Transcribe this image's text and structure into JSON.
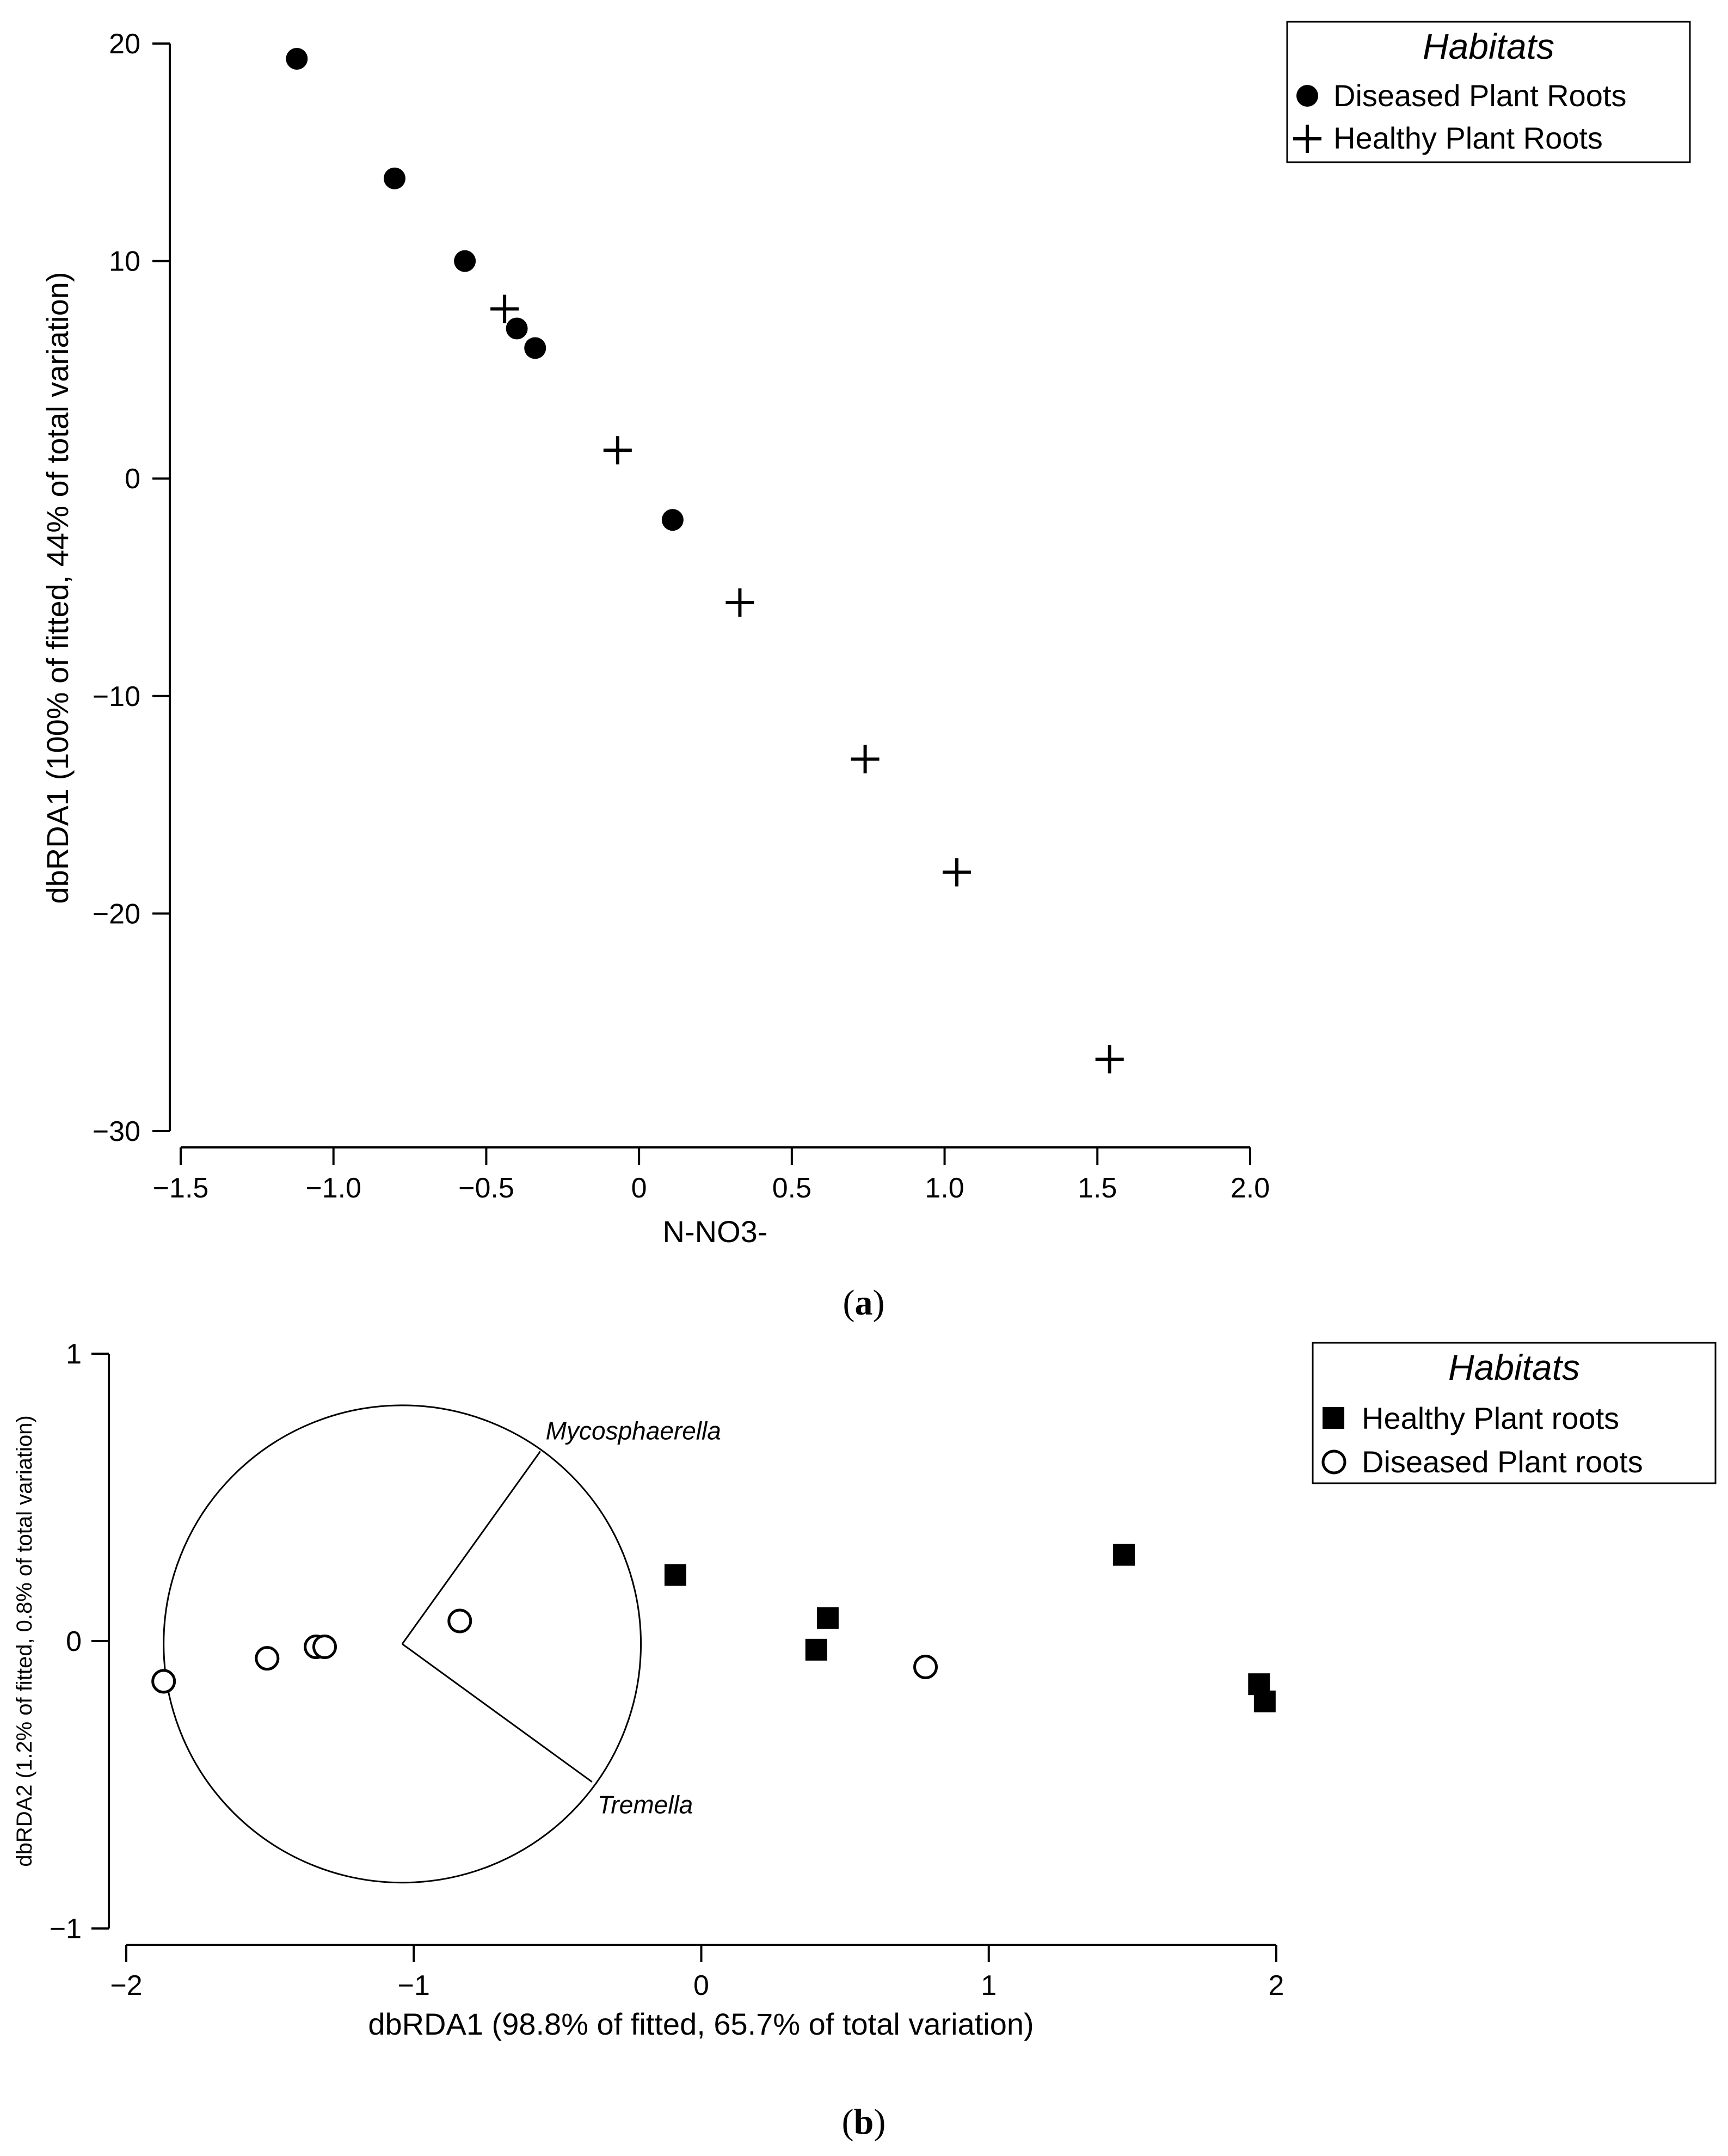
{
  "chart_data": [
    {
      "id": "a",
      "type": "scatter",
      "panel_label": "a",
      "xlabel": "N-NO3-",
      "ylabel": "dbRDA1 (100% of fitted, 44% of total variation)",
      "xlim": [
        -1.5,
        2.0
      ],
      "ylim": [
        -30,
        20
      ],
      "xticks": [
        -1.5,
        -1.0,
        -0.5,
        0,
        0.5,
        1.0,
        1.5,
        2.0
      ],
      "xtick_labels": [
        "−1.5",
        "−1.0",
        "−0.5",
        "0",
        "0.5",
        "1.0",
        "1.5",
        "2.0"
      ],
      "yticks": [
        20,
        10,
        0,
        -10,
        -20,
        -30
      ],
      "ytick_labels": [
        "20",
        "10",
        "0",
        "−10",
        "−20",
        "−30"
      ],
      "legend": {
        "title": "Habitats",
        "position": "top-right",
        "entries": [
          "Diseased Plant Roots",
          "Healthy Plant Roots"
        ]
      },
      "series": [
        {
          "name": "Diseased Plant Roots",
          "marker": "filled-circle",
          "points": [
            [
              -1.12,
              19.3
            ],
            [
              -0.8,
              13.8
            ],
            [
              -0.57,
              10.0
            ],
            [
              -0.4,
              6.9
            ],
            [
              -0.34,
              6.0
            ],
            [
              0.11,
              -1.9
            ]
          ]
        },
        {
          "name": "Healthy Plant Roots",
          "marker": "plus",
          "points": [
            [
              -0.44,
              7.8
            ],
            [
              -0.07,
              1.3
            ],
            [
              0.33,
              -5.7
            ],
            [
              0.74,
              -12.9
            ],
            [
              1.04,
              -18.1
            ],
            [
              1.54,
              -26.7
            ]
          ]
        }
      ]
    },
    {
      "id": "b",
      "type": "scatter",
      "panel_label": "b",
      "xlabel": "dbRDA1 (98.8% of fitted, 65.7% of total variation)",
      "ylabel": "dbRDA2 (1.2% of fitted, 0.8% of total variation)",
      "xlim": [
        -2,
        2
      ],
      "ylim": [
        -1,
        1
      ],
      "xticks": [
        -2,
        -1,
        0,
        1,
        2
      ],
      "xtick_labels": [
        "−2",
        "−1",
        "0",
        "1",
        "2"
      ],
      "yticks": [
        1,
        0,
        -1
      ],
      "ytick_labels": [
        "1",
        "0",
        "−1"
      ],
      "legend": {
        "title": "Habitats",
        "position": "top-right",
        "entries": [
          "Healthy Plant roots",
          "Diseased Plant roots"
        ]
      },
      "circle": {
        "center": [
          -1.04,
          -0.01
        ],
        "radius": 0.83
      },
      "vectors": [
        {
          "label": "Mycosphaerella",
          "end": [
            -0.56,
            0.66
          ]
        },
        {
          "label": "Tremella",
          "end": [
            -0.38,
            -0.49
          ]
        }
      ],
      "series": [
        {
          "name": "Healthy Plant roots",
          "marker": "filled-square",
          "points": [
            [
              -0.09,
              0.23
            ],
            [
              0.44,
              0.08
            ],
            [
              0.4,
              -0.03
            ],
            [
              1.47,
              0.3
            ],
            [
              1.94,
              -0.15
            ],
            [
              1.96,
              -0.21
            ]
          ]
        },
        {
          "name": "Diseased Plant roots",
          "marker": "open-circle",
          "points": [
            [
              -1.87,
              -0.14
            ],
            [
              -1.51,
              -0.06
            ],
            [
              -1.34,
              -0.02
            ],
            [
              -1.31,
              -0.02
            ],
            [
              -0.84,
              0.07
            ],
            [
              0.78,
              -0.09
            ]
          ]
        }
      ]
    }
  ]
}
